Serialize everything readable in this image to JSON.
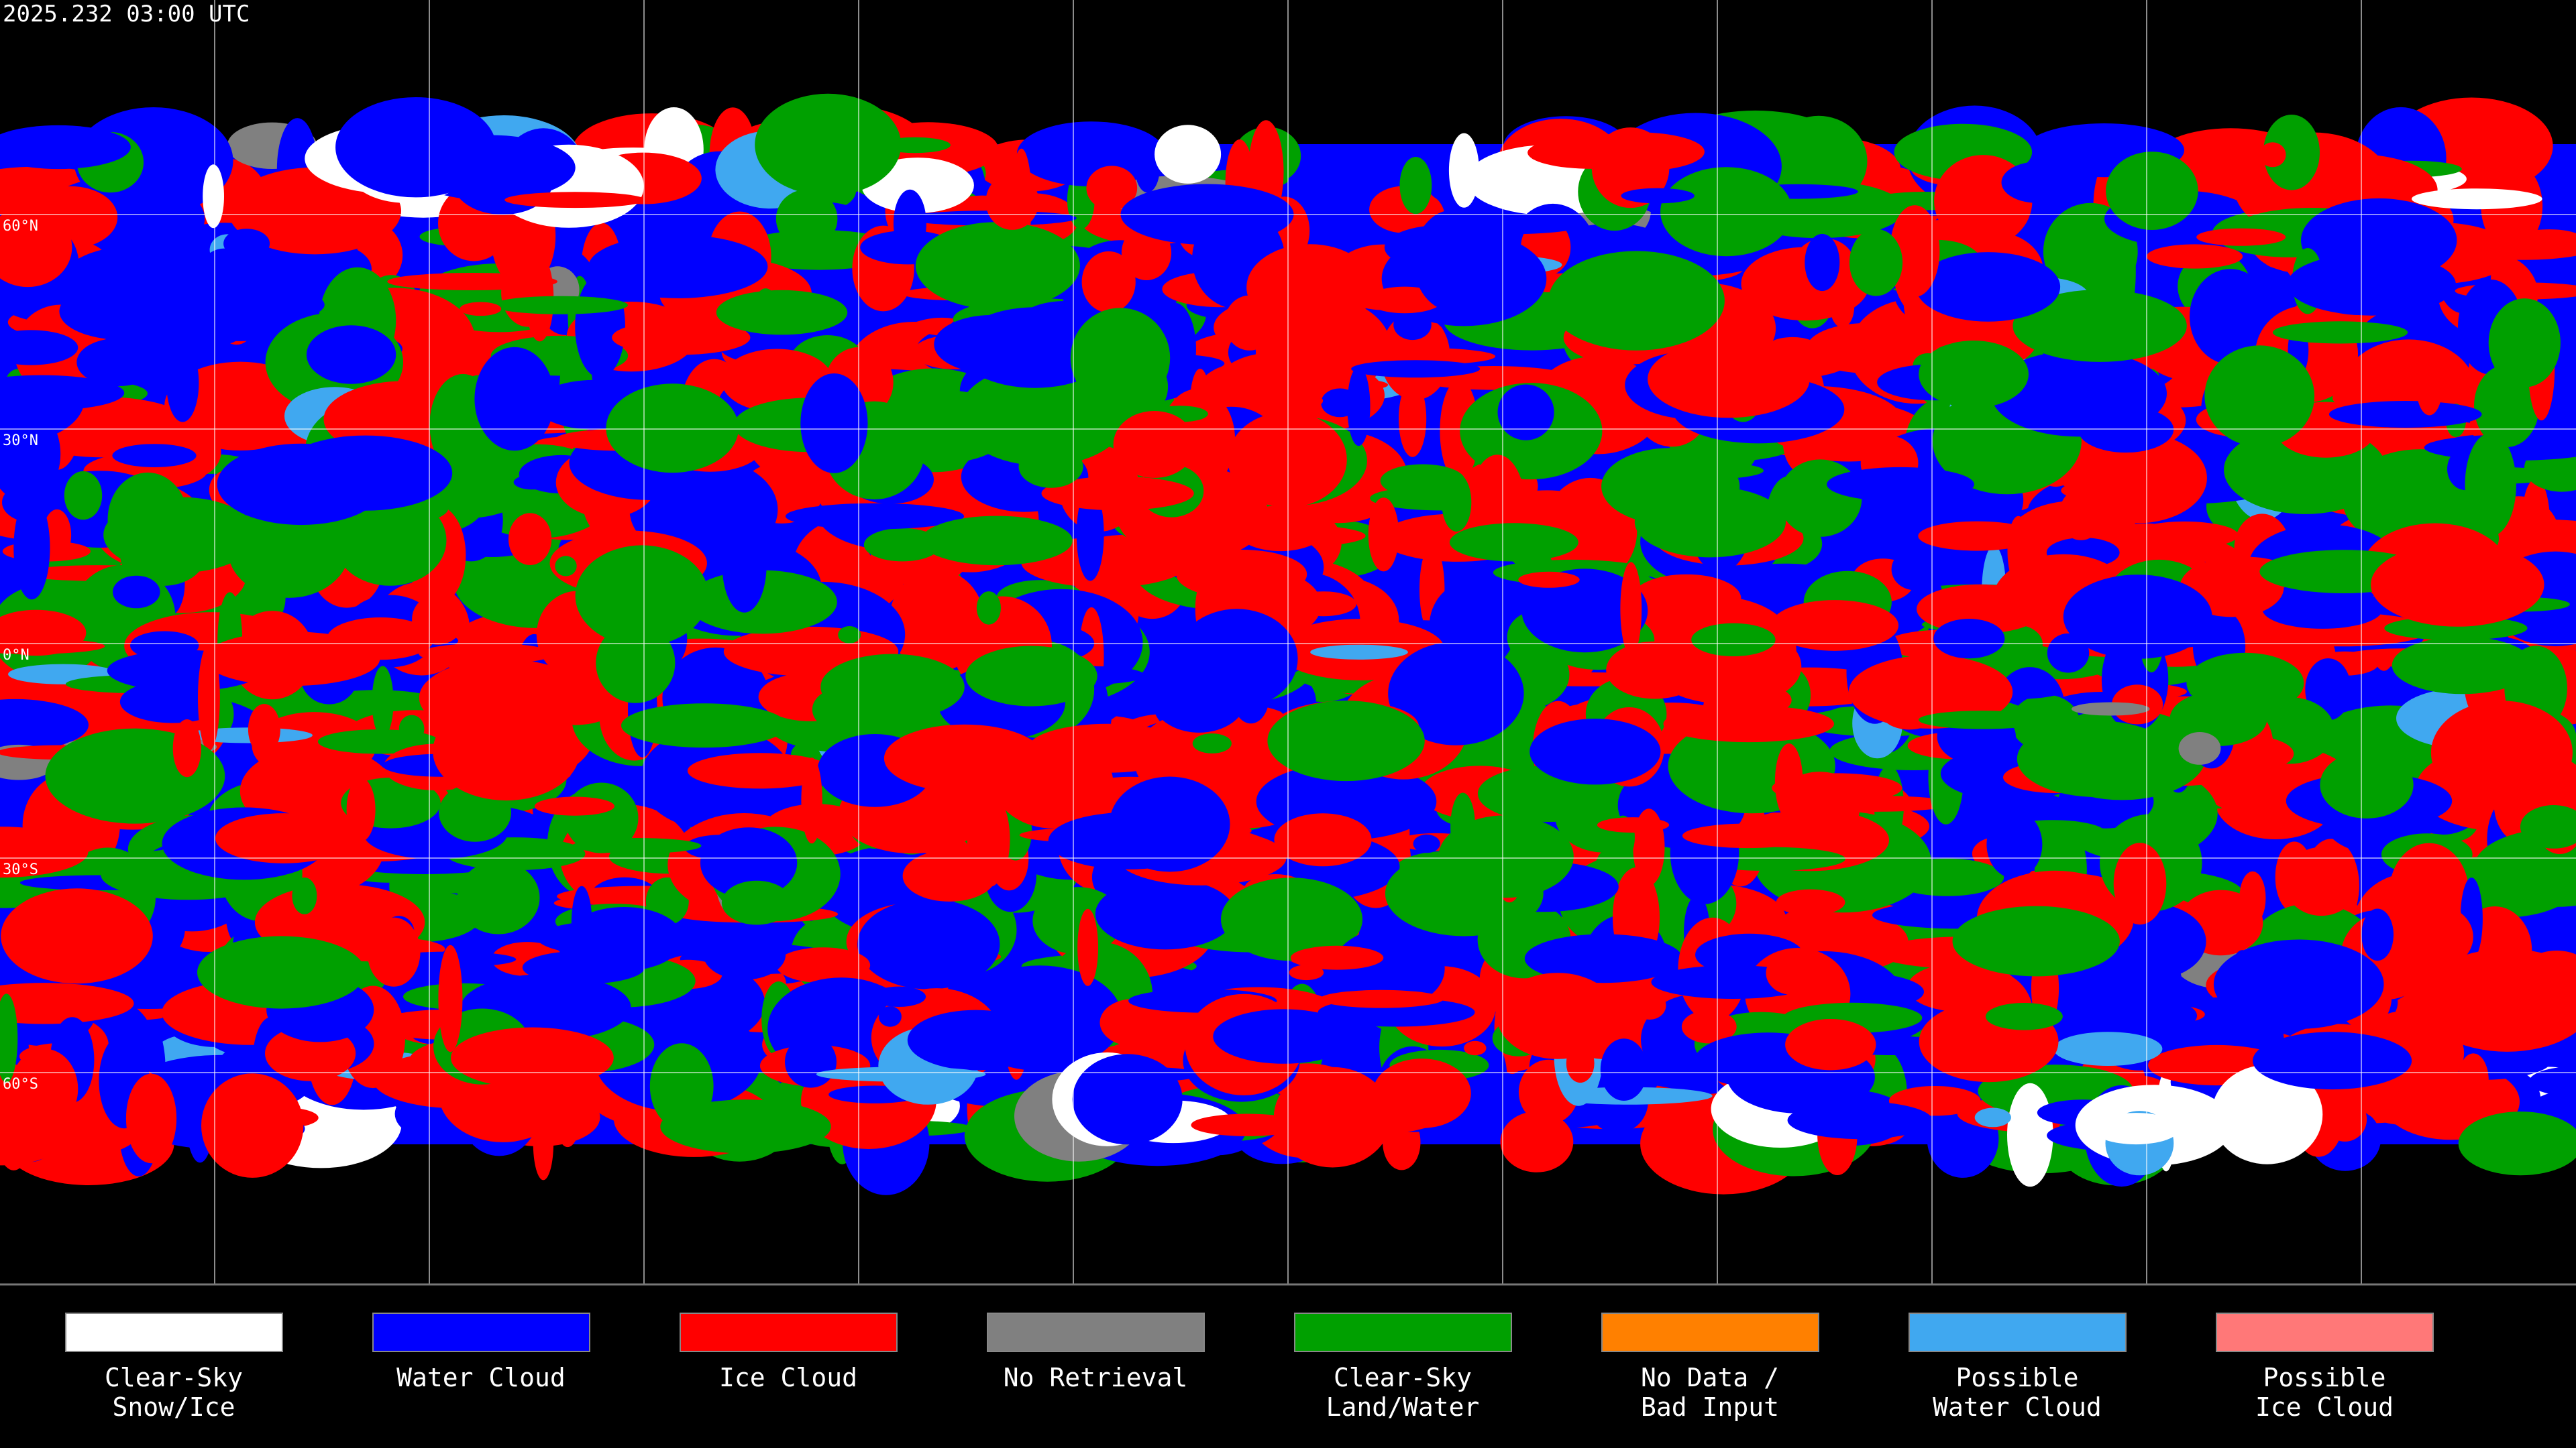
{
  "header": {
    "timestamp": "2025.232 03:00 UTC"
  },
  "map": {
    "lat_labels": [
      "60°N",
      "30°N",
      "0°N",
      "30°S",
      "60°S"
    ]
  },
  "legend": {
    "items": [
      {
        "lines": [
          "Clear-Sky",
          "Snow/Ice"
        ],
        "color": "#ffffff"
      },
      {
        "lines": [
          "Water Cloud"
        ],
        "color": "#0000ff"
      },
      {
        "lines": [
          "Ice Cloud"
        ],
        "color": "#ff0000"
      },
      {
        "lines": [
          "No Retrieval"
        ],
        "color": "#808080"
      },
      {
        "lines": [
          "Clear-Sky",
          "Land/Water"
        ],
        "color": "#00a000"
      },
      {
        "lines": [
          "No Data /",
          "Bad Input"
        ],
        "color": "#ff8000"
      },
      {
        "lines": [
          "Possible",
          "Water Cloud"
        ],
        "color": "#40a8f0"
      },
      {
        "lines": [
          "Possible",
          "Ice Cloud"
        ],
        "color": "#ff7878"
      }
    ]
  }
}
